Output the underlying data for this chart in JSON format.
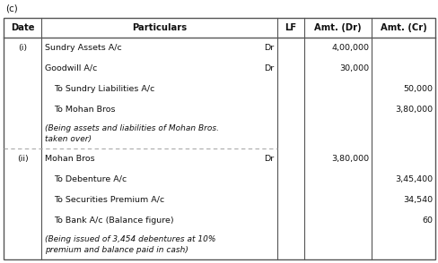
{
  "title": "(c)",
  "headers": [
    "Date",
    "Particulars",
    "LF",
    "Amt. (Dr)",
    "Amt. (Cr)"
  ],
  "rows": [
    {
      "date": "(i)",
      "particulars": "Sundry Assets A/c",
      "dr_label": "Dr",
      "amt_dr": "4,00,000",
      "amt_cr": "",
      "indent": false,
      "italic": false,
      "is_note": false
    },
    {
      "date": "",
      "particulars": "Goodwill A/c",
      "dr_label": "Dr",
      "amt_dr": "30,000",
      "amt_cr": "",
      "indent": false,
      "italic": false,
      "is_note": false
    },
    {
      "date": "",
      "particulars": "To Sundry Liabilities A/c",
      "dr_label": "",
      "amt_dr": "",
      "amt_cr": "50,000",
      "indent": true,
      "italic": false,
      "is_note": false
    },
    {
      "date": "",
      "particulars": "To Mohan Bros",
      "dr_label": "",
      "amt_dr": "",
      "amt_cr": "3,80,000",
      "indent": true,
      "italic": false,
      "is_note": false
    },
    {
      "date": "",
      "particulars": "(Being assets and liabilities of Mohan Bros.\ntaken over)",
      "dr_label": "",
      "amt_dr": "",
      "amt_cr": "",
      "indent": false,
      "italic": true,
      "is_note": true
    },
    {
      "date": "(ii)",
      "particulars": "Mohan Bros",
      "dr_label": "Dr",
      "amt_dr": "3,80,000",
      "amt_cr": "",
      "indent": false,
      "italic": false,
      "is_note": false,
      "divider_above": true
    },
    {
      "date": "",
      "particulars": "To Debenture A/c",
      "dr_label": "",
      "amt_dr": "",
      "amt_cr": "3,45,400",
      "indent": true,
      "italic": false,
      "is_note": false
    },
    {
      "date": "",
      "particulars": "To Securities Premium A/c",
      "dr_label": "",
      "amt_dr": "",
      "amt_cr": "34,540",
      "indent": true,
      "italic": false,
      "is_note": false
    },
    {
      "date": "",
      "particulars": "To Bank A/c (Balance figure)",
      "dr_label": "",
      "amt_dr": "",
      "amt_cr": "60",
      "indent": true,
      "italic": false,
      "is_note": false
    },
    {
      "date": "",
      "particulars": "(Being issued of 3,454 debentures at 10%\npremium and balance paid in cash)",
      "dr_label": "",
      "amt_dr": "",
      "amt_cr": "",
      "indent": false,
      "italic": true,
      "is_note": true
    }
  ],
  "bg_color": "#ffffff",
  "border_color": "#555555",
  "divider_color": "#aaaaaa",
  "text_color": "#111111",
  "font_size": 6.8,
  "header_font_size": 7.2
}
